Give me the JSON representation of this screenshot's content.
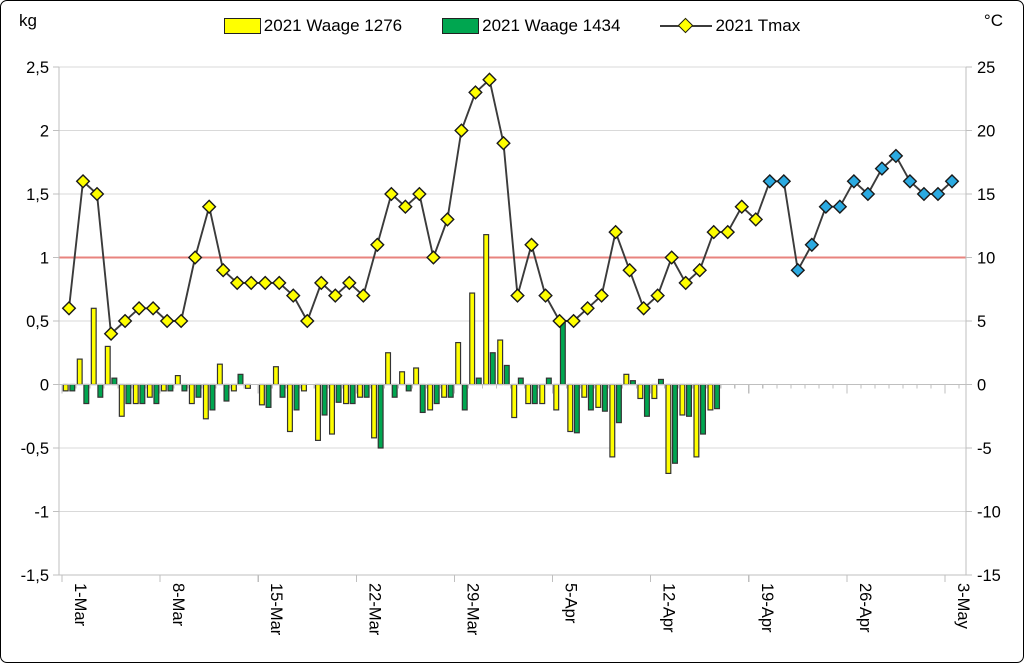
{
  "units": {
    "left": "kg",
    "right": "°C"
  },
  "legend": [
    {
      "label": "2021 Waage 1276",
      "type": "bar",
      "color": "#ffff00"
    },
    {
      "label": "2021 Waage 1434",
      "type": "bar",
      "color": "#00a650"
    },
    {
      "label": "2021 Tmax",
      "type": "line-diamond",
      "color": "#ffff00"
    }
  ],
  "chart_data": {
    "type": "combo-bar-line",
    "x": {
      "days": 64,
      "start_label": "1-Mar",
      "end_label": "3-May",
      "tick_positions": [
        1,
        8,
        15,
        22,
        29,
        36,
        43,
        50,
        57,
        64
      ],
      "tick_labels": [
        "1-Mar",
        "8-Mar",
        "15-Mar",
        "22-Mar",
        "29-Mar",
        "5-Apr",
        "12-Apr",
        "19-Apr",
        "26-Apr",
        "3-May"
      ]
    },
    "y_left": {
      "unit": "kg",
      "min": -1.5,
      "max": 2.5,
      "step": 0.5,
      "tick_values": [
        2.5,
        2,
        1.5,
        1,
        0.5,
        0,
        -0.5,
        -1,
        -1.5
      ],
      "tick_labels": [
        "2,5",
        "2",
        "1,5",
        "1",
        "0,5",
        "0",
        "-0,5",
        "-1",
        "-1,5"
      ]
    },
    "y_right": {
      "unit": "°C",
      "min": -15,
      "max": 25,
      "step": 5,
      "tick_values": [
        25,
        20,
        15,
        10,
        5,
        0,
        -5,
        -10,
        -15
      ],
      "tick_labels": [
        "25",
        "20",
        "15",
        "10",
        "5",
        "0",
        "-5",
        "-10",
        "-15"
      ]
    },
    "reference_line": {
      "axis": "left",
      "value": 1.0,
      "color": "#e8837e"
    },
    "grid": {
      "horizontal": true,
      "vertical": false,
      "color": "#d9d9d9",
      "axis_color": "#bfbfbf"
    },
    "legend_position": "top-center",
    "series": [
      {
        "name": "2021 Waage 1276",
        "type": "bar",
        "axis": "left",
        "fill": "#ffff00",
        "stroke": "#333333",
        "values": [
          -0.05,
          0.2,
          0.6,
          0.3,
          -0.25,
          -0.15,
          -0.1,
          -0.05,
          0.07,
          -0.15,
          -0.27,
          0.16,
          -0.05,
          -0.03,
          -0.16,
          0.14,
          -0.37,
          -0.05,
          -0.44,
          -0.39,
          -0.15,
          -0.1,
          -0.42,
          0.25,
          0.1,
          0.13,
          -0.2,
          -0.1,
          0.33,
          0.72,
          1.18,
          0.35,
          -0.26,
          -0.15,
          -0.15,
          -0.2,
          -0.37,
          -0.1,
          -0.18,
          -0.57,
          0.08,
          -0.11,
          -0.11,
          -0.7,
          -0.24,
          -0.57,
          -0.2,
          null,
          null,
          null,
          null,
          null,
          null,
          null,
          null,
          null,
          null,
          null,
          null,
          null,
          null,
          null,
          null,
          null
        ]
      },
      {
        "name": "2021 Waage 1434",
        "type": "bar",
        "axis": "left",
        "fill": "#00a650",
        "stroke": "#333333",
        "values": [
          -0.05,
          -0.15,
          -0.1,
          0.05,
          -0.15,
          -0.15,
          -0.15,
          -0.05,
          -0.05,
          -0.1,
          -0.2,
          -0.13,
          0.08,
          null,
          -0.18,
          -0.1,
          -0.2,
          null,
          -0.24,
          -0.14,
          -0.15,
          -0.1,
          -0.5,
          -0.1,
          -0.05,
          -0.22,
          -0.15,
          -0.1,
          -0.2,
          0.05,
          0.25,
          0.15,
          0.05,
          -0.15,
          0.05,
          0.5,
          -0.38,
          -0.2,
          -0.21,
          -0.3,
          0.03,
          -0.25,
          0.04,
          -0.62,
          -0.25,
          -0.39,
          -0.19,
          null,
          null,
          null,
          null,
          null,
          null,
          null,
          null,
          null,
          null,
          null,
          null,
          null,
          null,
          null,
          null,
          null
        ]
      },
      {
        "name": "2021 Tmax",
        "type": "line",
        "axis": "right",
        "line_color": "#3b3b3b",
        "marker": "diamond",
        "marker_fill_early": "#ffff00",
        "marker_fill_late": "#2baae1",
        "marker_stroke": "#1a1a1a",
        "marker_color_change_index": 50,
        "values": [
          6,
          16,
          15,
          4,
          5,
          6,
          6,
          5,
          5,
          10,
          14,
          9,
          8,
          8,
          8,
          8,
          7,
          5,
          8,
          7,
          8,
          7,
          11,
          15,
          14,
          15,
          10,
          13,
          20,
          23,
          24,
          19,
          7,
          11,
          7,
          5,
          5,
          6,
          7,
          12,
          9,
          6,
          7,
          10,
          8,
          9,
          12,
          12,
          14,
          13,
          16,
          16,
          9,
          11,
          14,
          14,
          16,
          15,
          17,
          18,
          16,
          15,
          15,
          16
        ]
      }
    ]
  }
}
